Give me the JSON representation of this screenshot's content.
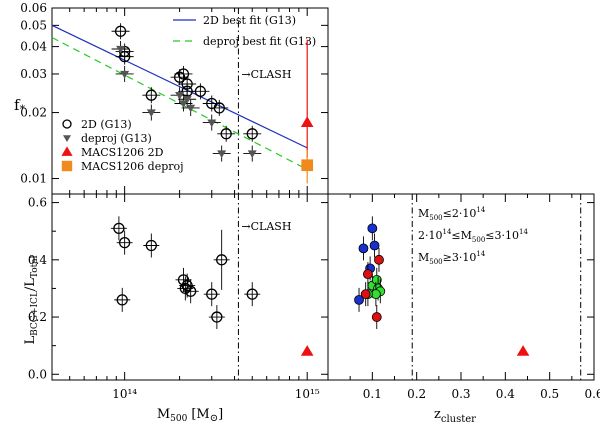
{
  "chart_data": [
    {
      "id": "top",
      "type": "scatter",
      "xscale": "log",
      "yscale": "log",
      "xlim": [
        40000000000000,
        1300000000000000
      ],
      "ylim": [
        0.0085,
        0.06
      ],
      "ylabel": "f*",
      "yticks": [
        {
          "v": 0.01,
          "label": "0.01"
        },
        {
          "v": 0.02,
          "label": "0.02"
        },
        {
          "v": 0.03,
          "label": "0.03"
        },
        {
          "v": 0.04,
          "label": "0.04"
        },
        {
          "v": 0.05,
          "label": "0.05"
        },
        {
          "v": 0.06,
          "label": "0.06"
        }
      ],
      "clash_label": "→CLASH",
      "clash_x": 420000000000000,
      "fits": [
        {
          "name": "2D best fit (G13)",
          "color": "#1f2fbf",
          "dash": "",
          "x": [
            40000000000000,
            1000000000000000
          ],
          "y": [
            0.05,
            0.0138
          ]
        },
        {
          "name": "deproj best fit (G13)",
          "color": "#22cc22",
          "dash": "7,5",
          "x": [
            40000000000000,
            1000000000000000
          ],
          "y": [
            0.044,
            0.011
          ]
        }
      ],
      "series": [
        {
          "name": "2D (G13)",
          "marker": "circle",
          "color": "#000000",
          "x": [
            95000000000000,
            100000000000000,
            100000000000000,
            140000000000000,
            200000000000000,
            210000000000000,
            220000000000000,
            220000000000000,
            260000000000000,
            300000000000000,
            330000000000000,
            360000000000000,
            500000000000000
          ],
          "y": [
            0.047,
            0.036,
            0.038,
            0.024,
            0.029,
            0.03,
            0.027,
            0.025,
            0.025,
            0.022,
            0.021,
            0.016,
            0.016
          ]
        },
        {
          "name": "deproj (G13)",
          "marker": "triangle-down",
          "color": "#555555",
          "x": [
            95000000000000,
            100000000000000,
            140000000000000,
            200000000000000,
            210000000000000,
            220000000000000,
            230000000000000,
            300000000000000,
            340000000000000,
            500000000000000
          ],
          "y": [
            0.039,
            0.03,
            0.02,
            0.024,
            0.022,
            0.023,
            0.021,
            0.018,
            0.013,
            0.013
          ]
        },
        {
          "name": "MACS1206 2D",
          "marker": "triangle-up",
          "color": "#ee1111",
          "x": [
            1000000000000000
          ],
          "y": [
            0.018
          ],
          "yerr": [
            0.0055,
            0.025
          ]
        },
        {
          "name": "MACS1206 deproj",
          "marker": "square",
          "color": "#f08a1c",
          "x": [
            1000000000000000
          ],
          "y": [
            0.0115
          ],
          "yerr": [
            0.002,
            0.002
          ]
        }
      ],
      "legend_fits_loc": "top-right",
      "legend_points_loc": "lower-left"
    },
    {
      "id": "bottom-left",
      "type": "scatter",
      "xscale": "log",
      "xlim": [
        40000000000000,
        1300000000000000
      ],
      "ylim": [
        -0.02,
        0.63
      ],
      "xlabel": "M500 [M⊙]",
      "ylabel": "L(BCG+ICL)/L(Total)",
      "xticks": [
        {
          "v": 100000000000000,
          "label": "10¹⁴"
        },
        {
          "v": 1000000000000000,
          "label": "10¹⁵"
        }
      ],
      "yticks": [
        {
          "v": 0.0,
          "label": "0.0"
        },
        {
          "v": 0.2,
          "label": "0.2"
        },
        {
          "v": 0.4,
          "label": "0.4"
        },
        {
          "v": 0.6,
          "label": "0.6"
        }
      ],
      "clash_label": "→CLASH",
      "clash_x": 420000000000000,
      "series": [
        {
          "name": "G13",
          "marker": "circle",
          "color": "#000000",
          "x": [
            93000000000000,
            97000000000000,
            100000000000000,
            140000000000000,
            210000000000000,
            215000000000000,
            220000000000000,
            230000000000000,
            300000000000000,
            320000000000000,
            340000000000000,
            500000000000000
          ],
          "y": [
            0.51,
            0.26,
            0.46,
            0.45,
            0.33,
            0.3,
            0.31,
            0.29,
            0.28,
            0.2,
            0.4,
            0.28
          ]
        },
        {
          "name": "MACS1206",
          "marker": "triangle-up",
          "color": "#ee1111",
          "x": [
            1000000000000000
          ],
          "y": [
            0.08
          ]
        }
      ]
    },
    {
      "id": "bottom-right",
      "type": "scatter",
      "xlim": [
        0.0,
        0.6
      ],
      "ylim": [
        -0.02,
        0.63
      ],
      "xlabel": "z_cluster",
      "xticks": [
        {
          "v": 0.1,
          "label": "0.1"
        },
        {
          "v": 0.2,
          "label": "0.2"
        },
        {
          "v": 0.3,
          "label": "0.3"
        },
        {
          "v": 0.4,
          "label": "0.4"
        },
        {
          "v": 0.5,
          "label": "0.5"
        },
        {
          "v": 0.6,
          "label": "0.6"
        }
      ],
      "vlines": [
        0.19,
        0.57
      ],
      "series": [
        {
          "name": "M500 ≤ 2·10¹⁴",
          "marker": "circle",
          "color": "#1a2fcf",
          "x": [
            0.07,
            0.08,
            0.1,
            0.105,
            0.095
          ],
          "y": [
            0.26,
            0.44,
            0.51,
            0.45,
            0.37
          ]
        },
        {
          "name": "2·10¹⁴ ≤ M500 ≤ 3·10¹⁴",
          "marker": "circle",
          "color": "#33dd33",
          "x": [
            0.1,
            0.11,
            0.113,
            0.118,
            0.108,
            0.09
          ],
          "y": [
            0.31,
            0.33,
            0.3,
            0.29,
            0.28,
            0.28
          ]
        },
        {
          "name": "M500 ≥ 3·10¹⁴",
          "marker": "circle",
          "color": "#dd1111",
          "x": [
            0.085,
            0.09,
            0.115,
            0.11
          ],
          "y": [
            0.28,
            0.35,
            0.4,
            0.2
          ]
        },
        {
          "name": "MACS1206",
          "marker": "triangle-up",
          "color": "#ee1111",
          "x": [
            0.44
          ],
          "y": [
            0.08
          ]
        }
      ]
    }
  ],
  "legend_points": [
    {
      "label": "2D (G13)",
      "color": "#000000",
      "marker": "circle"
    },
    {
      "label": "deproj (G13)",
      "color": "#555555",
      "marker": "triangle-down"
    },
    {
      "label": "MACS1206 2D",
      "color": "#ee1111",
      "marker": "triangle-up"
    },
    {
      "label": "MACS1206 deproj",
      "color": "#f08a1c",
      "marker": "square"
    }
  ],
  "legend_mass": [
    {
      "pre": "",
      "sub_a": "500",
      "mid": "",
      "sub_b": "",
      "post": "≤2·10",
      "sup": "14",
      "prefix_m": "M",
      "color": "#1a2fcf"
    },
    {
      "pre": "2·10",
      "pre_sup": "14",
      "prefix_m": "≤M",
      "sub_a": "500",
      "post": "≤3·10",
      "sup": "14",
      "color": "#22cc22"
    },
    {
      "pre": "",
      "prefix_m": "M",
      "sub_a": "500",
      "post": "≥3·10",
      "sup": "14",
      "color": "#dd1111"
    }
  ],
  "labels": {
    "fstar_main": "f",
    "fstar_sub": "*",
    "lratio_main_a": "L",
    "lratio_sub_a": "BCG+ICL",
    "lratio_slash": "/L",
    "lratio_sub_b": "Total",
    "m500_main": "M",
    "m500_sub": "500",
    "m500_units": "[M",
    "m500_sun": "⊙",
    "m500_close": "]",
    "z_main": "z",
    "z_sub": "cluster"
  }
}
